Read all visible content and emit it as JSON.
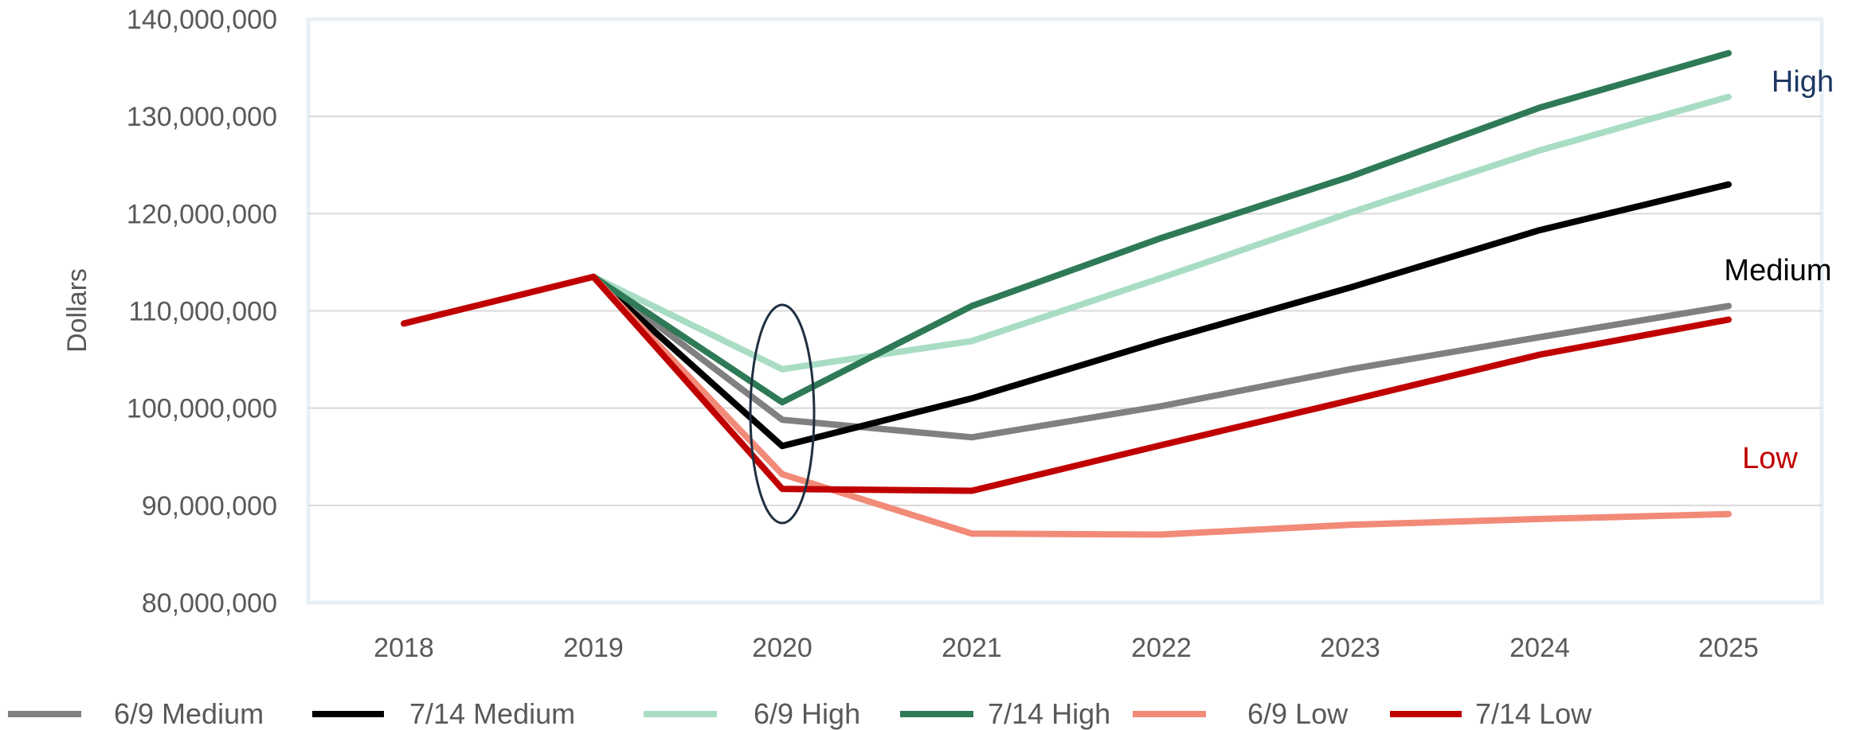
{
  "chart_data": {
    "type": "line",
    "ylabel": "Dollars",
    "xlabel": "",
    "title": "",
    "x": [
      "2018",
      "2019",
      "2020",
      "2021",
      "2022",
      "2023",
      "2024",
      "2025"
    ],
    "ylim": [
      80000000,
      140000000
    ],
    "yticks": [
      80000000,
      90000000,
      100000000,
      110000000,
      120000000,
      130000000,
      140000000
    ],
    "ytick_labels": [
      "80,000,000",
      "90,000,000",
      "100,000,000",
      "110,000,000",
      "120,000,000",
      "130,000,000",
      "140,000,000"
    ],
    "grid": true,
    "legend_position": "bottom",
    "series": [
      {
        "name": "6/9 Medium",
        "color": "#808080",
        "x": [
          "2019",
          "2020",
          "2021",
          "2022",
          "2023",
          "2024",
          "2025"
        ],
        "values": [
          113500000,
          98800000,
          97000000,
          100200000,
          104000000,
          107300000,
          110500000
        ]
      },
      {
        "name": "7/14 Medium",
        "color": "#000000",
        "x": [
          "2019",
          "2020",
          "2021",
          "2022",
          "2023",
          "2024",
          "2025"
        ],
        "values": [
          113500000,
          96100000,
          101000000,
          106900000,
          112400000,
          118300000,
          123000000
        ]
      },
      {
        "name": "6/9 High",
        "color": "#A8DDC4",
        "x": [
          "2019",
          "2020",
          "2021",
          "2022",
          "2023",
          "2024",
          "2025"
        ],
        "values": [
          113500000,
          104000000,
          106900000,
          113400000,
          120100000,
          126500000,
          132000000
        ]
      },
      {
        "name": "7/14 High",
        "color": "#2E7A57",
        "x": [
          "2019",
          "2020",
          "2021",
          "2022",
          "2023",
          "2024",
          "2025"
        ],
        "values": [
          113500000,
          100600000,
          110500000,
          117500000,
          123800000,
          130900000,
          136500000
        ]
      },
      {
        "name": "6/9 Low",
        "color": "#F28A78",
        "x": [
          "2019",
          "2020",
          "2021",
          "2022",
          "2023",
          "2024",
          "2025"
        ],
        "values": [
          113500000,
          93200000,
          87100000,
          87000000,
          88000000,
          88600000,
          89100000
        ]
      },
      {
        "name": "7/14 Low",
        "color": "#C00000",
        "x": [
          "2018",
          "2019",
          "2020",
          "2021",
          "2022",
          "2023",
          "2024",
          "2025"
        ],
        "values": [
          108700000,
          113500000,
          91700000,
          91500000,
          96200000,
          100800000,
          105500000,
          109100000
        ]
      }
    ],
    "annotations": [
      {
        "text": "High",
        "color": "#1F3864"
      },
      {
        "text": "Medium",
        "color": "#000000"
      },
      {
        "text": "Low",
        "color": "#C00000"
      }
    ],
    "highlight_ellipse_x": "2020"
  }
}
